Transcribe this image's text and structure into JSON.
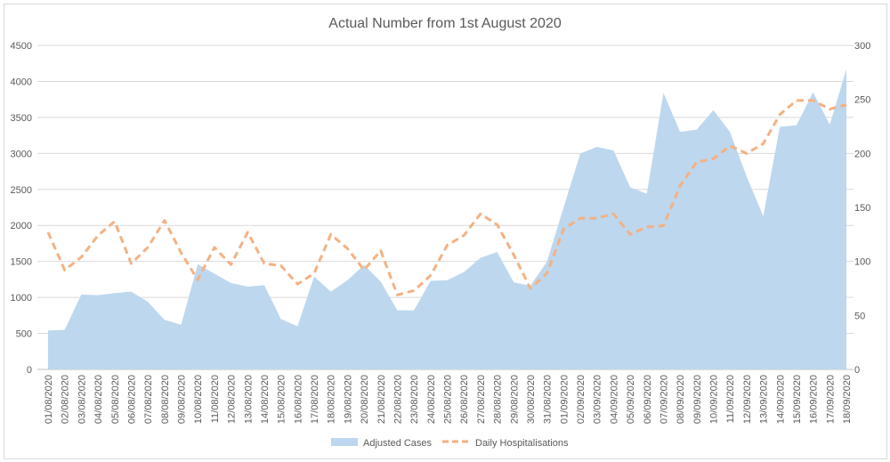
{
  "chart_data": {
    "type": "area+line",
    "title": "Actual Number from 1st August 2020",
    "categories": [
      "01/08/2020",
      "02/08/2020",
      "03/08/2020",
      "04/08/2020",
      "05/08/2020",
      "06/08/2020",
      "07/08/2020",
      "08/08/2020",
      "09/08/2020",
      "10/08/2020",
      "11/08/2020",
      "12/08/2020",
      "13/08/2020",
      "14/08/2020",
      "15/08/2020",
      "16/08/2020",
      "17/08/2020",
      "18/08/2020",
      "19/08/2020",
      "20/08/2020",
      "21/08/2020",
      "22/08/2020",
      "23/08/2020",
      "24/08/2020",
      "25/08/2020",
      "26/08/2020",
      "27/08/2020",
      "28/08/2020",
      "29/08/2020",
      "30/08/2020",
      "31/08/2020",
      "01/09/2020",
      "02/09/2020",
      "03/09/2020",
      "04/09/2020",
      "05/09/2020",
      "06/09/2020",
      "07/09/2020",
      "08/09/2020",
      "09/09/2020",
      "10/09/2020",
      "11/09/2020",
      "12/09/2020",
      "13/09/2020",
      "14/09/2020",
      "15/09/2020",
      "16/09/2020",
      "17/09/2020",
      "18/09/2020"
    ],
    "series": [
      {
        "name": "Adjusted Cases",
        "type": "area",
        "axis": "left",
        "color": "#bdd7ee",
        "values": [
          540,
          550,
          1040,
          1030,
          1060,
          1080,
          940,
          690,
          620,
          1460,
          1330,
          1200,
          1150,
          1170,
          700,
          600,
          1290,
          1080,
          1240,
          1450,
          1220,
          820,
          820,
          1230,
          1240,
          1350,
          1550,
          1630,
          1210,
          1160,
          1500,
          2250,
          3000,
          3090,
          3040,
          2530,
          2440,
          3840,
          3300,
          3330,
          3600,
          3300,
          2680,
          2130,
          3370,
          3390,
          3850,
          3400,
          4170
        ]
      },
      {
        "name": "Daily Hospitalisations",
        "type": "line",
        "axis": "right",
        "color": "#f4b183",
        "dash": "dashed",
        "values": [
          127,
          92,
          104,
          124,
          137,
          98,
          113,
          138,
          108,
          83,
          113,
          97,
          127,
          98,
          96,
          79,
          89,
          125,
          112,
          92,
          110,
          69,
          73,
          87,
          115,
          124,
          144,
          134,
          106,
          75,
          89,
          130,
          140,
          140,
          144,
          125,
          132,
          133,
          170,
          192,
          195,
          207,
          200,
          209,
          236,
          249,
          249,
          241,
          245
        ]
      }
    ],
    "y_left": {
      "min": 0,
      "max": 4500,
      "step": 500,
      "ticks": [
        "0",
        "500",
        "1000",
        "1500",
        "2000",
        "2500",
        "3000",
        "3500",
        "4000",
        "4500"
      ]
    },
    "y_right": {
      "min": 0,
      "max": 300,
      "step": 50,
      "ticks": [
        "0",
        "50",
        "100",
        "150",
        "200",
        "250",
        "300"
      ]
    },
    "grid": true,
    "legend_position": "bottom-center",
    "legend": [
      {
        "label": "Adjusted Cases",
        "swatch": "area",
        "color": "#bdd7ee"
      },
      {
        "label": "Daily Hospitalisations",
        "swatch": "dashed-line",
        "color": "#f4b183"
      }
    ],
    "gridline_color": "#d9d9d9",
    "text_color": "#595959"
  }
}
